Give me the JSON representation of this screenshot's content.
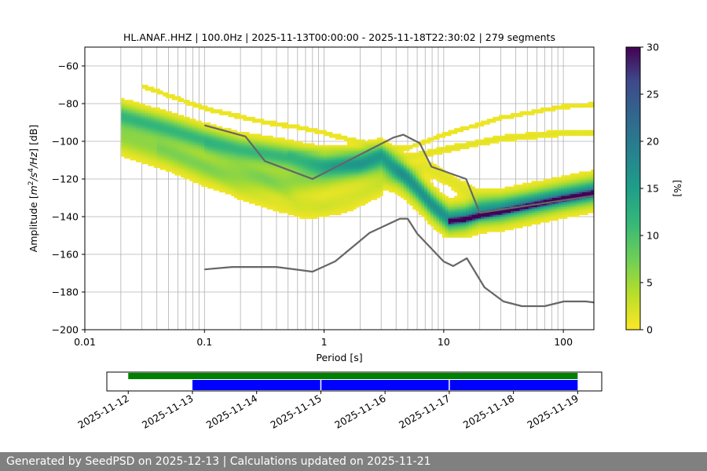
{
  "title": "HL.ANAF..HHZ | 100.0Hz | 2025-11-13T00:00:00 - 2025-11-18T22:30:02 | 279 segments",
  "footer": "Generated by SeedPSD on 2025-12-13 | Calculations updated on 2025-11-21",
  "chart_data": [
    {
      "type": "heatmap",
      "name": "ppsd",
      "xlabel": "Period [s]",
      "ylabel": "Amplitude [m²/s⁴/Hz] [dB]",
      "xscale": "log",
      "xlim": [
        0.01,
        180
      ],
      "ylim": [
        -200,
        -50
      ],
      "xticks": [
        {
          "v": 0.01,
          "label": "0.01"
        },
        {
          "v": 0.1,
          "label": "0.1"
        },
        {
          "v": 1,
          "label": "1"
        },
        {
          "v": 10,
          "label": "10"
        },
        {
          "v": 100,
          "label": "100"
        }
      ],
      "yticks": [
        -60,
        -80,
        -100,
        -120,
        -140,
        -160,
        -180,
        -200
      ],
      "grid": true,
      "colorbar": {
        "label": "[%]",
        "min": 0,
        "max": 30,
        "ticks": [
          0,
          5,
          10,
          15,
          20,
          25,
          30
        ],
        "colormap": "viridis_r"
      },
      "nhnm": {
        "x": [
          0.1,
          0.22,
          0.32,
          0.8,
          3.8,
          4.6,
          6.3,
          7.9,
          15.4,
          20,
          354.8
        ],
        "y": [
          -91.5,
          -97.4,
          -110.5,
          -120,
          -98,
          -96.5,
          -101,
          -113.5,
          -120,
          -138,
          -126
        ]
      },
      "nlnm": {
        "x": [
          0.1,
          0.17,
          0.4,
          0.8,
          1.24,
          2.4,
          4.3,
          5,
          6,
          10,
          12,
          15.6,
          21.9,
          31.6,
          45,
          70,
          101,
          154,
          328
        ],
        "y": [
          -168,
          -166.7,
          -166.7,
          -169.2,
          -163.7,
          -148.6,
          -141.1,
          -141.1,
          -149,
          -163.8,
          -166.2,
          -162.1,
          -177.5,
          -185,
          -187.5,
          -187.5,
          -185,
          -185,
          -187.5
        ]
      },
      "bands": [
        {
          "px": [
            0.02,
            0.05,
            0.1,
            0.2,
            0.5,
            1,
            2,
            3,
            4.5,
            6,
            8,
            11,
            15,
            20,
            30,
            50,
            100,
            180
          ],
          "py": [
            -86,
            -93,
            -99,
            -104,
            -108,
            -112,
            -111,
            -107,
            -116,
            -124,
            -133,
            -141,
            -140,
            -137,
            -136,
            -133,
            -129,
            -126
          ],
          "sigma": 4,
          "peak": 10
        },
        {
          "px": [
            0.02,
            0.05,
            0.1,
            0.2,
            0.5,
            1,
            2,
            3,
            4.5,
            6,
            8,
            11,
            15,
            20,
            30,
            50,
            100,
            180
          ],
          "py": [
            -97,
            -105,
            -113,
            -118,
            -121,
            -118,
            -113,
            -112,
            -119,
            -126,
            -134,
            -141,
            -140,
            -137,
            -136,
            -133,
            -129,
            -126
          ],
          "sigma": 5,
          "peak": 5
        },
        {
          "px": [
            0.03,
            0.1,
            0.3,
            0.6,
            1,
            2,
            3,
            5,
            10,
            30,
            100,
            180
          ],
          "py": [
            -70,
            -82,
            -89,
            -92,
            -95,
            -100,
            -104,
            -103,
            -96,
            -87,
            -81,
            -80
          ],
          "sigma": 1.2,
          "peak": 0.9
        },
        {
          "px": [
            0.5,
            1,
            3,
            5,
            10,
            30,
            100,
            180
          ],
          "py": [
            -106,
            -104,
            -106,
            -108,
            -104,
            -98,
            -95,
            -95
          ],
          "sigma": 1.4,
          "peak": 1.2
        },
        {
          "px": [
            0.1,
            0.3,
            0.6,
            1,
            2,
            4,
            7,
            10,
            20,
            50,
            100,
            180
          ],
          "py": [
            -102,
            -118,
            -132,
            -133,
            -126,
            -118,
            -113,
            -118,
            -130,
            -132,
            -130,
            -128
          ],
          "sigma": 3,
          "peak": 1.3
        },
        {
          "px": [
            0.04,
            0.1,
            0.2,
            0.4,
            0.7,
            1.5,
            3
          ],
          "py": [
            -103,
            -113,
            -126,
            -133,
            -137,
            -134,
            -125
          ],
          "sigma": 3,
          "peak": 1.1
        },
        {
          "px": [
            11,
            15,
            20,
            30,
            50,
            100,
            180
          ],
          "py": [
            -142,
            -141,
            -139,
            -137,
            -134,
            -130,
            -127
          ],
          "sigma": 0.9,
          "peak": 30
        }
      ]
    },
    {
      "type": "timeline",
      "name": "data-availability",
      "dates": [
        "2025-11-12",
        "2025-11-13",
        "2025-11-14",
        "2025-11-15",
        "2025-11-16",
        "2025-11-17",
        "2025-11-18",
        "2025-11-19"
      ],
      "xlim": [
        "2025-11-11T16:00",
        "2025-11-19T09:00"
      ],
      "green_bar": {
        "start": "2025-11-12",
        "end": "2025-11-19",
        "color": "#008000"
      },
      "blue_bars": [
        {
          "start": "2025-11-13",
          "end": "2025-11-15",
          "color": "#0000ff"
        },
        {
          "start": "2025-11-15",
          "end": "2025-11-17",
          "color": "#0000ff"
        },
        {
          "start": "2025-11-17",
          "end": "2025-11-19",
          "color": "#0000ff"
        }
      ]
    }
  ]
}
